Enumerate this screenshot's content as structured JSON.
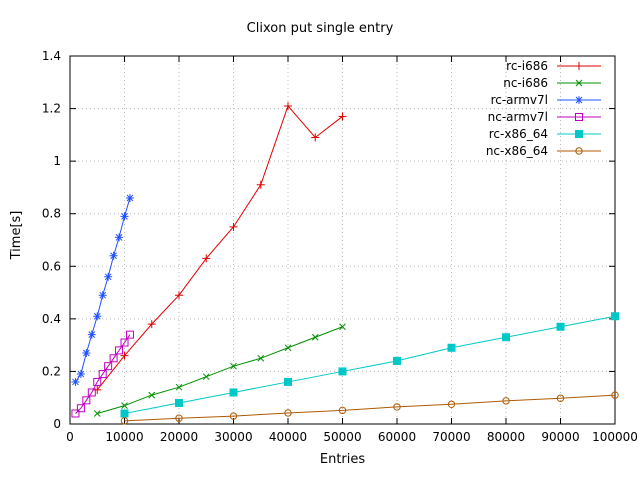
{
  "chart_data": {
    "type": "line",
    "title": "Clixon put single entry",
    "xlabel": "Entries",
    "ylabel": "Time[s]",
    "xlim": [
      0,
      100000
    ],
    "ylim": [
      0,
      1.4
    ],
    "xticks": [
      0,
      10000,
      20000,
      30000,
      40000,
      50000,
      60000,
      70000,
      80000,
      90000,
      100000
    ],
    "yticks": [
      0,
      0.2,
      0.4,
      0.6,
      0.8,
      1,
      1.2,
      1.4
    ],
    "grid": true,
    "legend_position": "top-right-inside",
    "series": [
      {
        "name": "rc-i686",
        "color": "#e00000",
        "marker": "plus",
        "points": [
          [
            5000,
            0.13
          ],
          [
            10000,
            0.26
          ],
          [
            15000,
            0.38
          ],
          [
            20000,
            0.49
          ],
          [
            25000,
            0.63
          ],
          [
            30000,
            0.75
          ],
          [
            35000,
            0.91
          ],
          [
            40000,
            1.21
          ],
          [
            45000,
            1.09
          ],
          [
            50000,
            1.17
          ]
        ]
      },
      {
        "name": "nc-i686",
        "color": "#009000",
        "marker": "x",
        "points": [
          [
            5000,
            0.04
          ],
          [
            10000,
            0.07
          ],
          [
            15000,
            0.11
          ],
          [
            20000,
            0.14
          ],
          [
            25000,
            0.18
          ],
          [
            30000,
            0.22
          ],
          [
            35000,
            0.25
          ],
          [
            40000,
            0.29
          ],
          [
            45000,
            0.33
          ],
          [
            50000,
            0.37
          ]
        ]
      },
      {
        "name": "rc-armv7l",
        "color": "#2050ff",
        "marker": "asterisk",
        "points": [
          [
            1000,
            0.16
          ],
          [
            2000,
            0.19
          ],
          [
            3000,
            0.27
          ],
          [
            4000,
            0.34
          ],
          [
            5000,
            0.41
          ],
          [
            6000,
            0.49
          ],
          [
            7000,
            0.56
          ],
          [
            8000,
            0.64
          ],
          [
            9000,
            0.71
          ],
          [
            10000,
            0.79
          ],
          [
            11000,
            0.86
          ]
        ]
      },
      {
        "name": "nc-armv7l",
        "color": "#c000c0",
        "marker": "square-open",
        "points": [
          [
            1000,
            0.04
          ],
          [
            2000,
            0.06
          ],
          [
            3000,
            0.09
          ],
          [
            4000,
            0.12
          ],
          [
            5000,
            0.16
          ],
          [
            6000,
            0.19
          ],
          [
            7000,
            0.22
          ],
          [
            8000,
            0.25
          ],
          [
            9000,
            0.28
          ],
          [
            10000,
            0.31
          ],
          [
            11000,
            0.34
          ]
        ]
      },
      {
        "name": "rc-x86_64",
        "color": "#00c8c8",
        "marker": "square-filled",
        "points": [
          [
            10000,
            0.04
          ],
          [
            20000,
            0.08
          ],
          [
            30000,
            0.12
          ],
          [
            40000,
            0.16
          ],
          [
            50000,
            0.2
          ],
          [
            60000,
            0.24
          ],
          [
            70000,
            0.29
          ],
          [
            80000,
            0.33
          ],
          [
            90000,
            0.37
          ],
          [
            100000,
            0.41
          ]
        ]
      },
      {
        "name": "nc-x86_64",
        "color": "#b05a00",
        "marker": "circle-open",
        "points": [
          [
            10000,
            0.012
          ],
          [
            20000,
            0.022
          ],
          [
            30000,
            0.03
          ],
          [
            40000,
            0.042
          ],
          [
            50000,
            0.052
          ],
          [
            60000,
            0.065
          ],
          [
            70000,
            0.075
          ],
          [
            80000,
            0.088
          ],
          [
            90000,
            0.098
          ],
          [
            100000,
            0.11
          ]
        ]
      }
    ],
    "colors": {
      "grid": "#b8b8b8",
      "axis": "#000000",
      "background": "#ffffff"
    }
  }
}
